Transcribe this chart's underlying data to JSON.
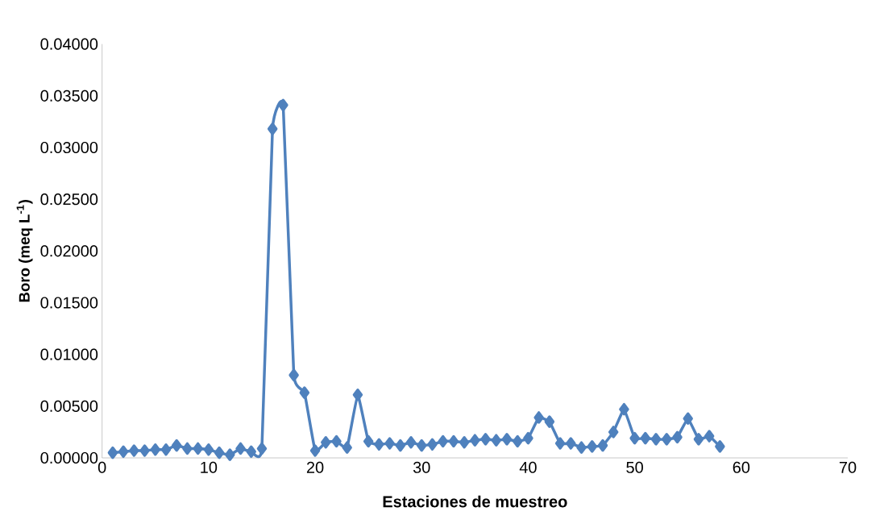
{
  "chart_data": {
    "type": "line",
    "xlabel": "Estaciones de muestreo",
    "ylabel": "Boro (meq  L$^{-1}$)",
    "x": [
      1,
      2,
      3,
      4,
      5,
      6,
      7,
      8,
      9,
      10,
      11,
      12,
      13,
      14,
      15,
      16,
      17,
      18,
      19,
      20,
      21,
      22,
      23,
      24,
      25,
      26,
      27,
      28,
      29,
      30,
      31,
      32,
      33,
      34,
      35,
      36,
      37,
      38,
      39,
      40,
      41,
      42,
      43,
      44,
      45,
      46,
      47,
      48,
      49,
      50,
      51,
      52,
      53,
      54,
      55,
      56,
      57,
      58
    ],
    "series": [
      {
        "color": "#4f81bd",
        "values": [
          0.0005,
          0.0006,
          0.0007,
          0.0007,
          0.0008,
          0.0008,
          0.0012,
          0.0009,
          0.0009,
          0.0008,
          0.0005,
          0.0003,
          0.0009,
          0.0006,
          0.0009,
          0.0318,
          0.0341,
          0.008,
          0.0063,
          0.0007,
          0.0015,
          0.0016,
          0.001,
          0.0061,
          0.0016,
          0.0013,
          0.0014,
          0.0012,
          0.0015,
          0.0012,
          0.0013,
          0.0016,
          0.0016,
          0.0015,
          0.0017,
          0.0018,
          0.0017,
          0.0018,
          0.0016,
          0.0019,
          0.0039,
          0.0035,
          0.0014,
          0.0014,
          0.001,
          0.0011,
          0.0012,
          0.0025,
          0.0047,
          0.0019,
          0.0019,
          0.0018,
          0.0018,
          0.002,
          0.0038,
          0.0018,
          0.0021,
          0.0011
        ]
      }
    ],
    "marker": "diamond",
    "line_style": "solid",
    "xlim": [
      0,
      70
    ],
    "xticks": [
      0,
      10,
      20,
      30,
      40,
      50,
      60,
      70
    ],
    "ylim": [
      0,
      0.04
    ],
    "yticks": [
      {
        "value": 0,
        "label": "0.00000"
      },
      {
        "value": 0.005,
        "label": "0.00500"
      },
      {
        "value": 0.01,
        "label": "0.01000"
      },
      {
        "value": 0.015,
        "label": "0.01500"
      },
      {
        "value": 0.02,
        "label": "0.02000"
      },
      {
        "value": 0.025,
        "label": "0.02500"
      },
      {
        "value": 0.03,
        "label": "0.03000"
      },
      {
        "value": 0.035,
        "label": "0.03500"
      },
      {
        "value": 0.04,
        "label": "0.04000"
      }
    ],
    "grid": false
  }
}
